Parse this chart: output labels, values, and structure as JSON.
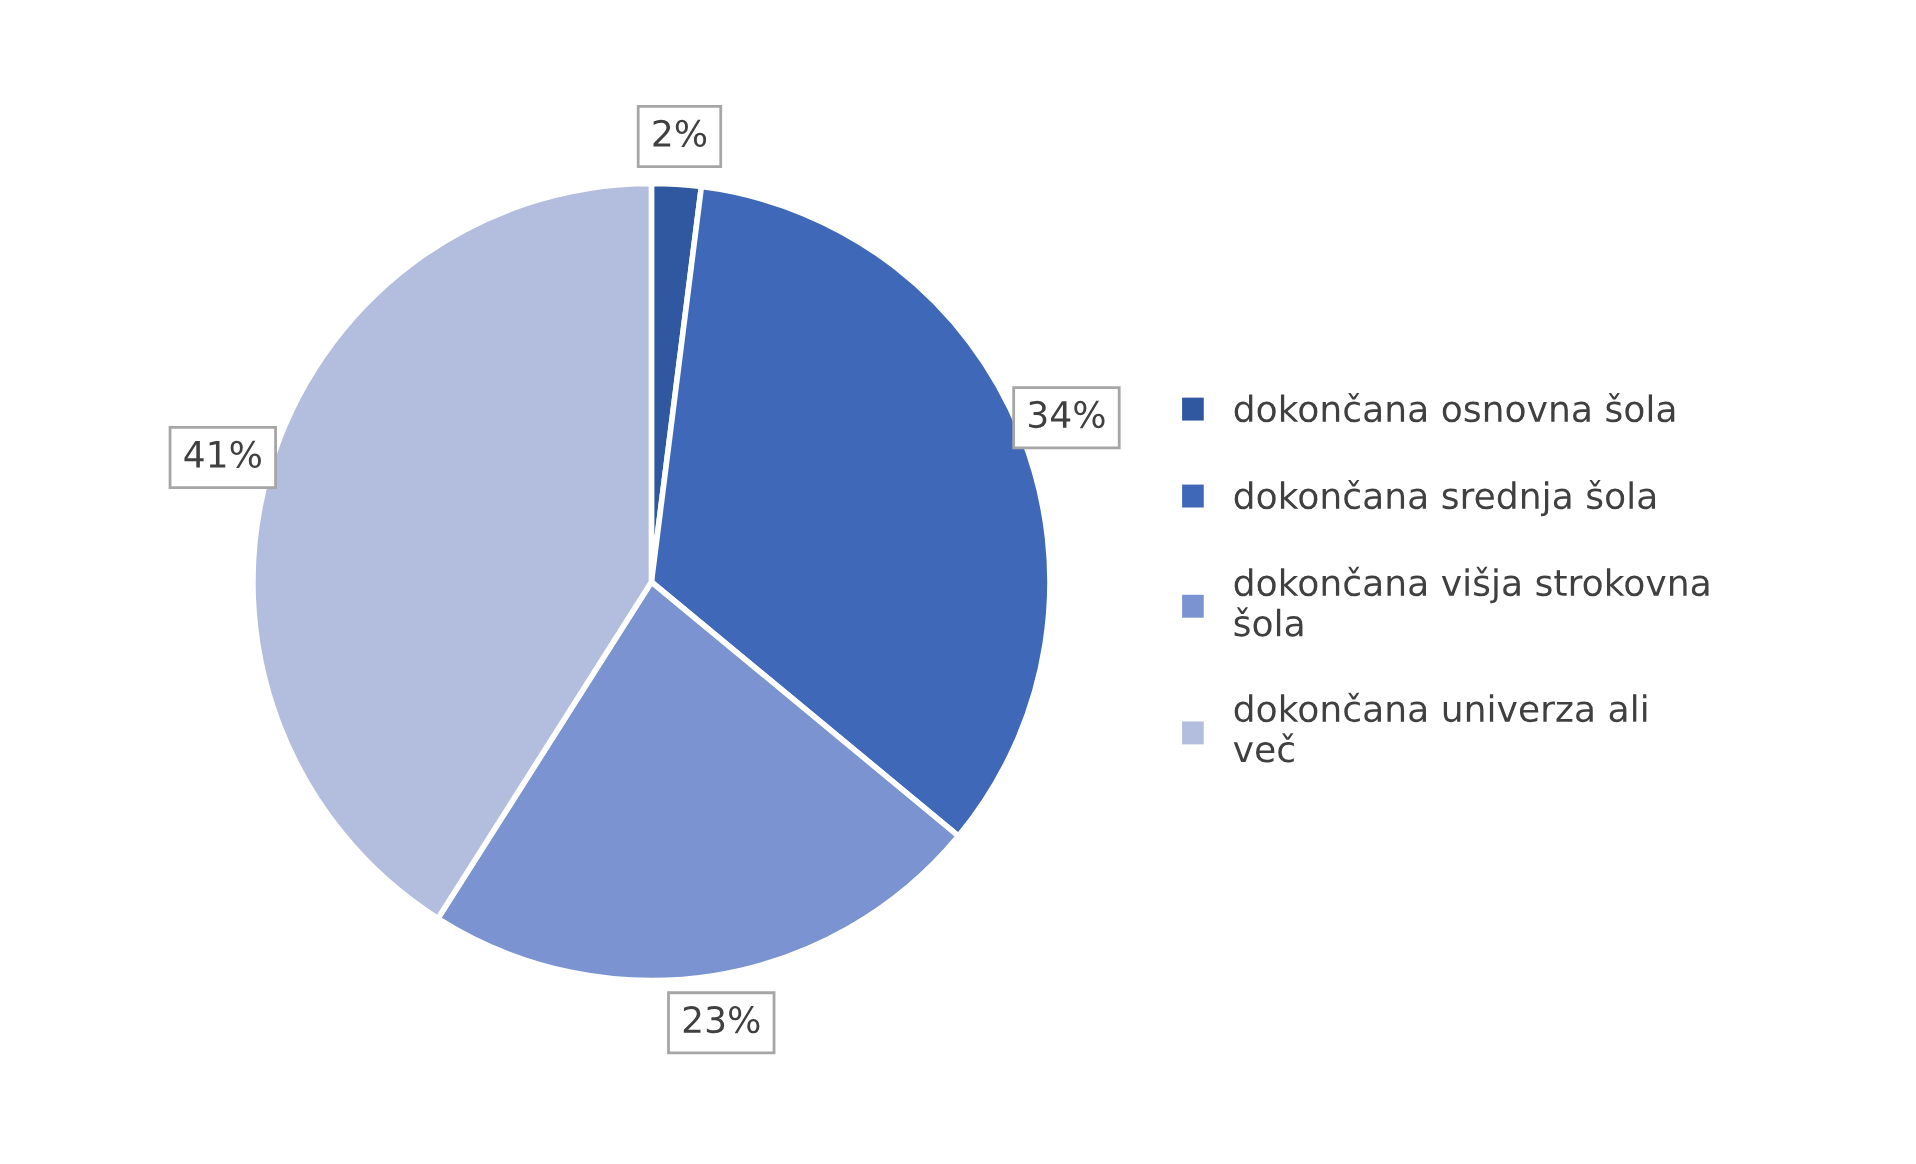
{
  "chart_data": {
    "type": "pie",
    "categories": [
      "dokončana osnovna šola",
      "dokončana srednja šola",
      "dokončana višja strokovna šola",
      "dokončana univerza ali več"
    ],
    "values": [
      2,
      34,
      23,
      41
    ],
    "colors": [
      "#2f58a0",
      "#4068b8",
      "#7b93d0",
      "#b3bede"
    ],
    "value_labels": [
      "2%",
      "34%",
      "23%",
      "41%"
    ],
    "legend": "right"
  }
}
